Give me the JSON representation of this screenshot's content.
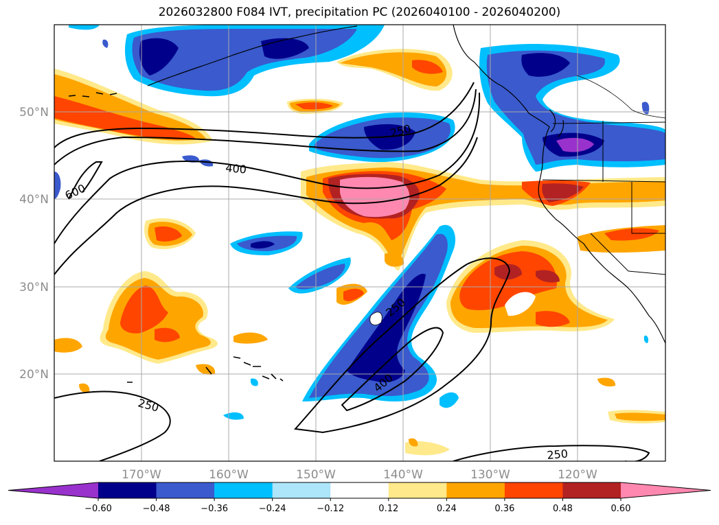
{
  "title": "2026032800 F084 IVT, precipitation PC (2026040100 - 2026040200)",
  "map": {
    "lon_range": [
      -180,
      -110
    ],
    "lat_range": [
      10,
      60
    ],
    "lon_ticks": [
      {
        "value": -170,
        "label": "170°W"
      },
      {
        "value": -160,
        "label": "160°W"
      },
      {
        "value": -150,
        "label": "150°W"
      },
      {
        "value": -140,
        "label": "140°W"
      },
      {
        "value": -130,
        "label": "130°W"
      },
      {
        "value": -120,
        "label": "120°W"
      }
    ],
    "lat_ticks": [
      {
        "value": 50,
        "label": "50°N"
      },
      {
        "value": 40,
        "label": "40°N"
      },
      {
        "value": 30,
        "label": "30°N"
      },
      {
        "value": 20,
        "label": "20°N"
      }
    ],
    "gridlines": true
  },
  "ivt_contour_labels": [
    "250",
    "400",
    "600",
    "250",
    "400",
    "250",
    "250"
  ],
  "colorbar": {
    "ticks": [
      "−0.60",
      "−0.48",
      "−0.36",
      "−0.24",
      "−0.12",
      "0.12",
      "0.24",
      "0.36",
      "0.48",
      "0.60"
    ],
    "colors": [
      "#9932cc",
      "#00008b",
      "#3a5acd",
      "#00bfff",
      "#ade5fb",
      "#ffffff",
      "#ffe98a",
      "#ffa500",
      "#ff4500",
      "#b22222",
      "#ff88b0"
    ],
    "extend": "both"
  },
  "chart_data": {
    "type": "map",
    "title": "2026032800 F084 IVT, precipitation PC (2026040100 - 2026040200)",
    "fields": [
      "IVT contours",
      "precipitation PC (shaded)"
    ],
    "ivt_contour_levels": [
      250,
      400,
      600
    ],
    "pc_levels": [
      -0.6,
      -0.48,
      -0.36,
      -0.24,
      -0.12,
      0.12,
      0.24,
      0.36,
      0.48,
      0.6
    ]
  }
}
